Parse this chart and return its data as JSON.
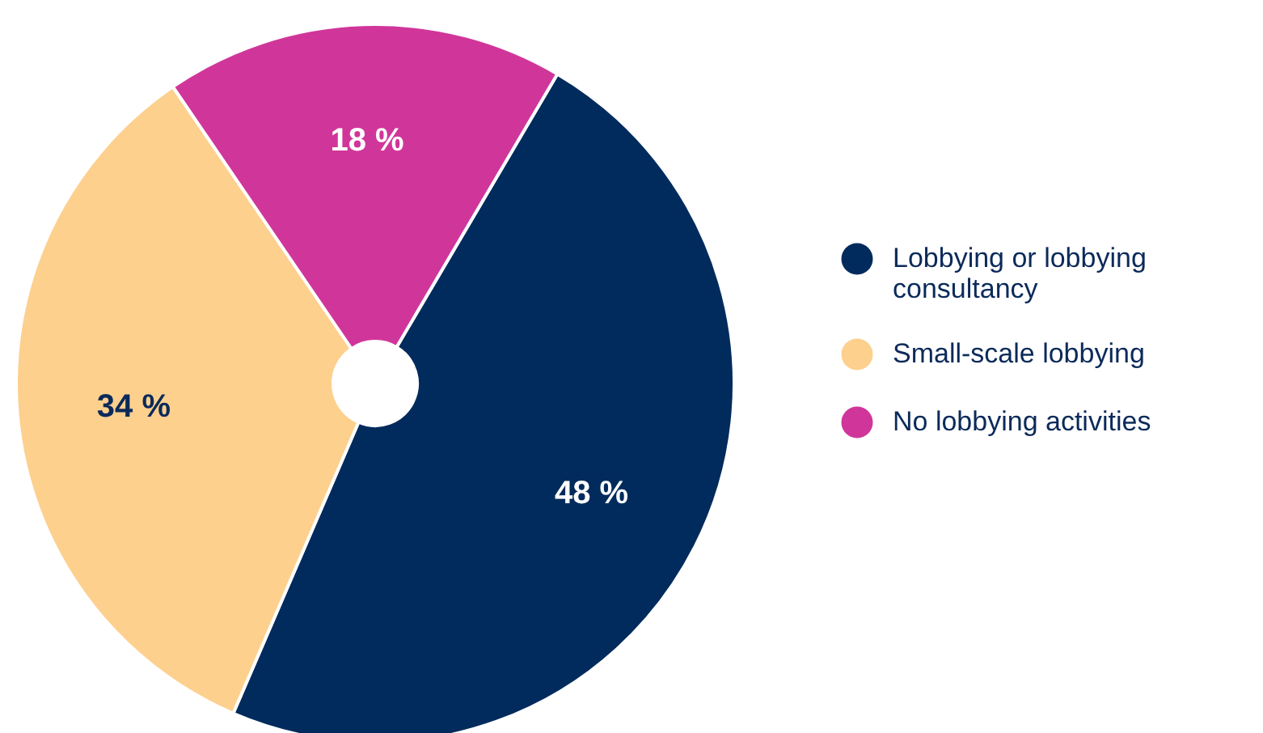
{
  "chart_data": {
    "type": "pie",
    "categories": [
      "Lobbying or lobbying consultancy",
      "Small-scale lobbying",
      "No lobbying activities"
    ],
    "values": [
      48,
      34,
      18
    ],
    "colors": [
      "#002b5c",
      "#fdd08e",
      "#d0369a"
    ],
    "value_labels": [
      "48 %",
      "34 %",
      "18 %"
    ],
    "legend": "right"
  }
}
